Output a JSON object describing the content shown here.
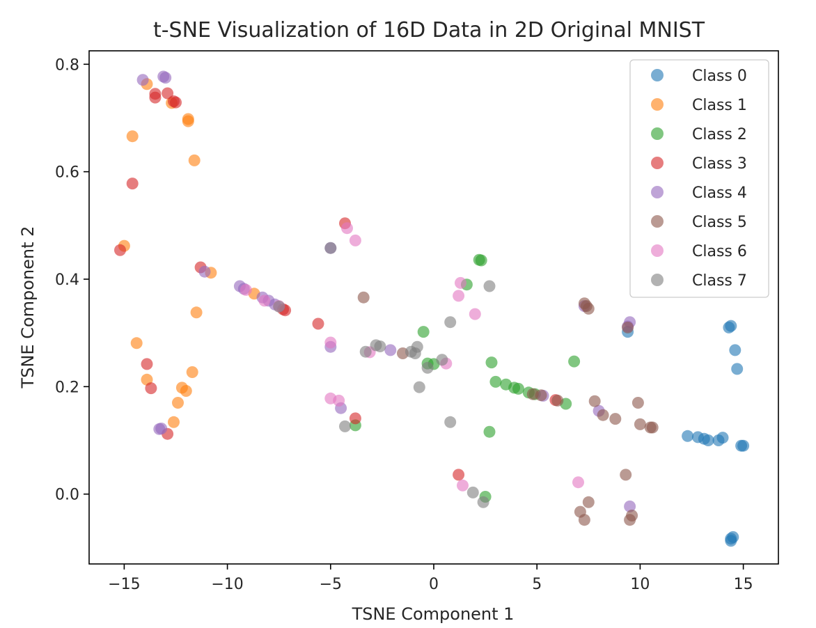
{
  "chart_data": {
    "type": "scatter",
    "title": "t-SNE Visualization of 16D Data in 2D Original MNIST",
    "xlabel": "TSNE Component 1",
    "ylabel": "TSNE Component 2",
    "xlim": [
      -16.7,
      16.7
    ],
    "ylim": [
      -0.13,
      0.825
    ],
    "xticks": [
      -15,
      -10,
      -5,
      0,
      5,
      10,
      15
    ],
    "xtick_labels": [
      "−15",
      "−10",
      "−5",
      "0",
      "5",
      "10",
      "15"
    ],
    "yticks": [
      0.0,
      0.2,
      0.4,
      0.6,
      0.8
    ],
    "ytick_labels": [
      "0.0",
      "0.2",
      "0.4",
      "0.6",
      "0.8"
    ],
    "grid": false,
    "legend_position": "top-right",
    "series": [
      {
        "name": "Class 0",
        "color": "#1f77b4",
        "points": [
          [
            14.3,
            0.31
          ],
          [
            14.4,
            0.313
          ],
          [
            14.6,
            0.268
          ],
          [
            14.7,
            0.233
          ],
          [
            12.3,
            0.108
          ],
          [
            12.8,
            0.106
          ],
          [
            13.1,
            0.103
          ],
          [
            13.3,
            0.1
          ],
          [
            13.8,
            0.1
          ],
          [
            14.0,
            0.105
          ],
          [
            14.9,
            0.09
          ],
          [
            15.0,
            0.09
          ],
          [
            14.4,
            -0.083
          ],
          [
            14.5,
            -0.08
          ],
          [
            14.4,
            -0.087
          ],
          [
            9.4,
            0.302
          ]
        ]
      },
      {
        "name": "Class 1",
        "color": "#ff7f0e",
        "points": [
          [
            -13.9,
            0.763
          ],
          [
            -12.7,
            0.728
          ],
          [
            -11.9,
            0.698
          ],
          [
            -11.9,
            0.694
          ],
          [
            -14.6,
            0.666
          ],
          [
            -11.6,
            0.621
          ],
          [
            -15.0,
            0.462
          ],
          [
            -10.8,
            0.412
          ],
          [
            -8.7,
            0.373
          ],
          [
            -11.5,
            0.338
          ],
          [
            -14.4,
            0.281
          ],
          [
            -13.9,
            0.213
          ],
          [
            -11.7,
            0.227
          ],
          [
            -12.2,
            0.198
          ],
          [
            -12.0,
            0.192
          ],
          [
            -12.4,
            0.17
          ],
          [
            -12.6,
            0.134
          ]
        ]
      },
      {
        "name": "Class 2",
        "color": "#2ca02c",
        "points": [
          [
            2.2,
            0.436
          ],
          [
            2.3,
            0.435
          ],
          [
            1.6,
            0.39
          ],
          [
            -0.5,
            0.302
          ],
          [
            -0.3,
            0.243
          ],
          [
            0.0,
            0.242
          ],
          [
            2.8,
            0.245
          ],
          [
            6.8,
            0.247
          ],
          [
            3.0,
            0.209
          ],
          [
            3.5,
            0.204
          ],
          [
            3.9,
            0.198
          ],
          [
            4.1,
            0.196
          ],
          [
            4.6,
            0.189
          ],
          [
            4.9,
            0.186
          ],
          [
            6.4,
            0.168
          ],
          [
            2.7,
            0.116
          ],
          [
            -3.8,
            0.128
          ],
          [
            2.5,
            -0.005
          ]
        ]
      },
      {
        "name": "Class 3",
        "color": "#d62728",
        "points": [
          [
            -13.5,
            0.745
          ],
          [
            -13.5,
            0.738
          ],
          [
            -12.9,
            0.746
          ],
          [
            -12.6,
            0.731
          ],
          [
            -12.5,
            0.729
          ],
          [
            -14.6,
            0.578
          ],
          [
            -15.2,
            0.454
          ],
          [
            -11.3,
            0.422
          ],
          [
            -7.3,
            0.344
          ],
          [
            -7.2,
            0.342
          ],
          [
            -5.6,
            0.317
          ],
          [
            -4.3,
            0.504
          ],
          [
            -13.9,
            0.242
          ],
          [
            -13.7,
            0.197
          ],
          [
            -12.9,
            0.112
          ],
          [
            -3.8,
            0.141
          ],
          [
            1.2,
            0.036
          ],
          [
            5.9,
            0.175
          ]
        ]
      },
      {
        "name": "Class 4",
        "color": "#9467bd",
        "points": [
          [
            -14.1,
            0.771
          ],
          [
            -13.1,
            0.777
          ],
          [
            -13.0,
            0.775
          ],
          [
            -11.1,
            0.414
          ],
          [
            -9.4,
            0.387
          ],
          [
            -9.2,
            0.382
          ],
          [
            -8.3,
            0.366
          ],
          [
            -8.0,
            0.36
          ],
          [
            -7.7,
            0.353
          ],
          [
            -5.0,
            0.458
          ],
          [
            -5.0,
            0.274
          ],
          [
            -13.3,
            0.121
          ],
          [
            -13.2,
            0.122
          ],
          [
            -4.5,
            0.16
          ],
          [
            -2.1,
            0.268
          ],
          [
            7.3,
            0.35
          ],
          [
            9.5,
            0.32
          ],
          [
            9.4,
            0.312
          ],
          [
            8.0,
            0.155
          ],
          [
            5.3,
            0.183
          ],
          [
            9.5,
            -0.023
          ]
        ]
      },
      {
        "name": "Class 5",
        "color": "#8c564b",
        "points": [
          [
            -3.4,
            0.366
          ],
          [
            7.3,
            0.355
          ],
          [
            7.4,
            0.35
          ],
          [
            7.5,
            0.345
          ],
          [
            9.4,
            0.31
          ],
          [
            7.8,
            0.173
          ],
          [
            9.9,
            0.17
          ],
          [
            8.2,
            0.147
          ],
          [
            8.8,
            0.14
          ],
          [
            10.0,
            0.13
          ],
          [
            10.5,
            0.124
          ],
          [
            10.6,
            0.124
          ],
          [
            4.8,
            0.186
          ],
          [
            5.2,
            0.184
          ],
          [
            6.0,
            0.174
          ],
          [
            -1.5,
            0.262
          ],
          [
            9.3,
            0.036
          ],
          [
            7.1,
            -0.033
          ],
          [
            7.5,
            -0.015
          ],
          [
            7.3,
            -0.048
          ],
          [
            9.6,
            -0.04
          ],
          [
            9.5,
            -0.048
          ]
        ]
      },
      {
        "name": "Class 6",
        "color": "#e377c2",
        "points": [
          [
            -4.2,
            0.495
          ],
          [
            -3.8,
            0.472
          ],
          [
            -5.0,
            0.282
          ],
          [
            -3.1,
            0.264
          ],
          [
            1.3,
            0.393
          ],
          [
            1.2,
            0.369
          ],
          [
            2.0,
            0.335
          ],
          [
            0.6,
            0.243
          ],
          [
            -5.0,
            0.178
          ],
          [
            -4.6,
            0.174
          ],
          [
            -8.2,
            0.36
          ],
          [
            -7.5,
            0.35
          ],
          [
            -9.1,
            0.38
          ],
          [
            1.4,
            0.016
          ],
          [
            7.0,
            0.022
          ]
        ]
      },
      {
        "name": "Class 7",
        "color": "#7f7f7f",
        "points": [
          [
            -5.0,
            0.458
          ],
          [
            2.7,
            0.387
          ],
          [
            0.8,
            0.32
          ],
          [
            -0.8,
            0.274
          ],
          [
            -0.9,
            0.262
          ],
          [
            -3.3,
            0.265
          ],
          [
            -2.8,
            0.277
          ],
          [
            -2.6,
            0.275
          ],
          [
            -1.1,
            0.265
          ],
          [
            0.4,
            0.25
          ],
          [
            -0.3,
            0.235
          ],
          [
            -0.7,
            0.199
          ],
          [
            0.8,
            0.134
          ],
          [
            -4.3,
            0.126
          ],
          [
            1.9,
            0.003
          ],
          [
            2.4,
            -0.015
          ],
          [
            -7.5,
            0.349
          ]
        ]
      }
    ]
  }
}
